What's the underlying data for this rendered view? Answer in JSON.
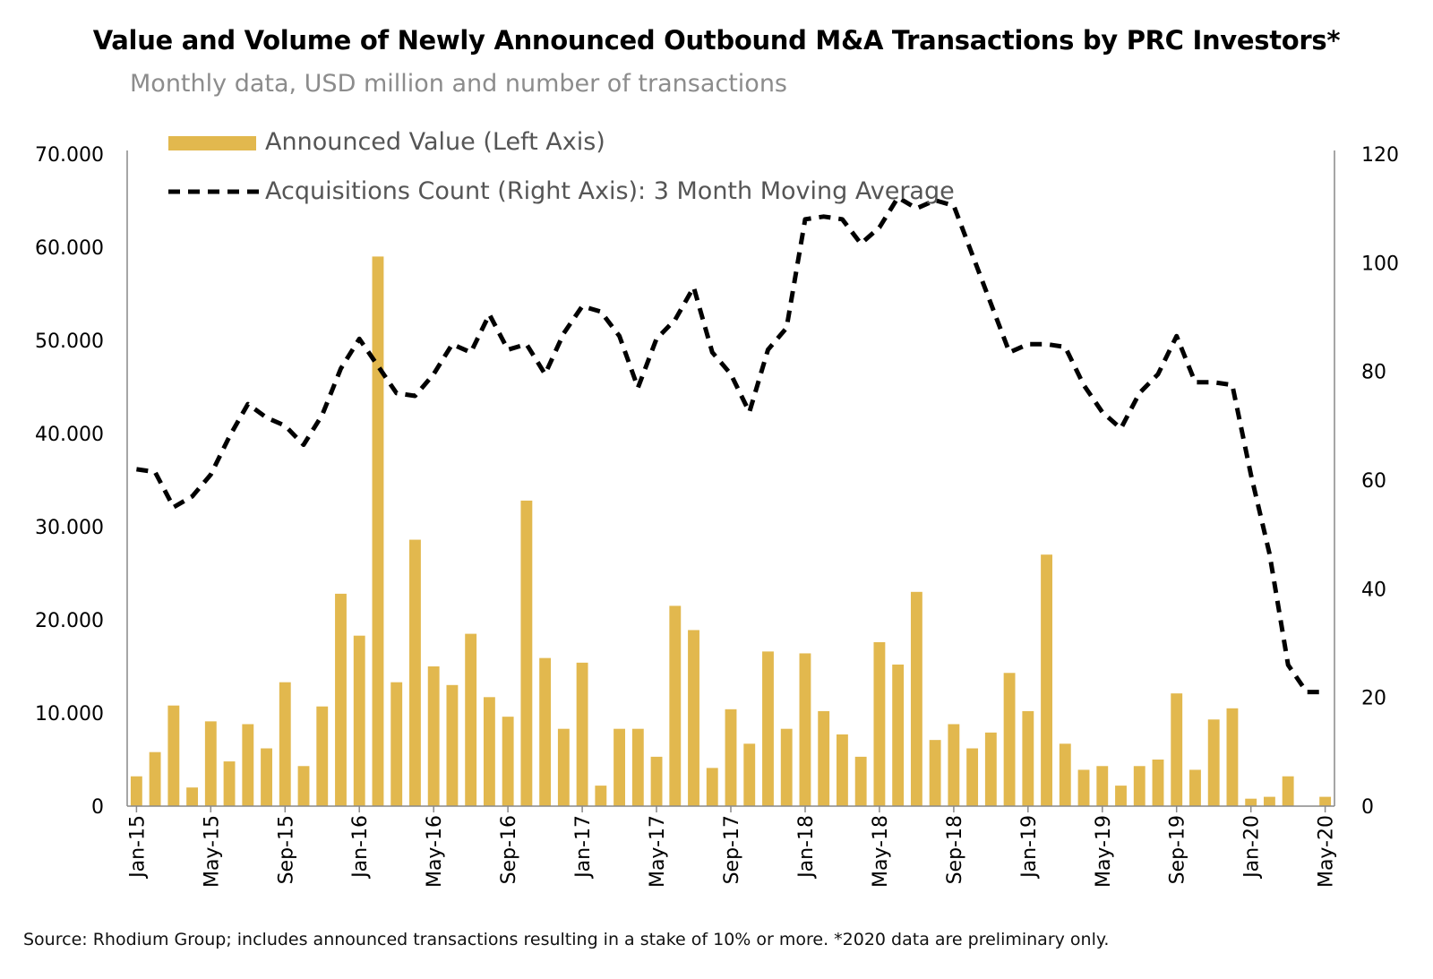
{
  "title": "Value and Volume of Newly Announced Outbound M&A Transactions by PRC Investors*",
  "subtitle": "Monthly data, USD million and number of transactions",
  "source": "Source: Rhodium Group; includes announced transactions resulting in a stake of 10% or more. *2020 data are preliminary only.",
  "colors": {
    "bar": "#e2b84e",
    "line": "#000000",
    "axis": "#888888"
  },
  "chart_data": {
    "type": "bar",
    "legend_placement": "top-left",
    "grid": false,
    "left_axis": {
      "ylim": [
        0,
        70000
      ],
      "ticks": [
        "0",
        "10.000",
        "20.000",
        "30.000",
        "40.000",
        "50.000",
        "60.000",
        "70.000"
      ]
    },
    "right_axis": {
      "ylim": [
        0,
        120
      ],
      "ticks": [
        "0",
        "20",
        "40",
        "60",
        "80",
        "100",
        "120"
      ]
    },
    "x_tick_labels": [
      "Jan-15",
      "May-15",
      "Sep-15",
      "Jan-16",
      "May-16",
      "Sep-16",
      "Jan-17",
      "May-17",
      "Sep-17",
      "Jan-18",
      "May-18",
      "Sep-18",
      "Jan-19",
      "May-19",
      "Sep-19",
      "Jan-20",
      "May-20"
    ],
    "categories": [
      "Jan-15",
      "Feb-15",
      "Mar-15",
      "Apr-15",
      "May-15",
      "Jun-15",
      "Jul-15",
      "Aug-15",
      "Sep-15",
      "Oct-15",
      "Nov-15",
      "Dec-15",
      "Jan-16",
      "Feb-16",
      "Mar-16",
      "Apr-16",
      "May-16",
      "Jun-16",
      "Jul-16",
      "Aug-16",
      "Sep-16",
      "Oct-16",
      "Nov-16",
      "Dec-16",
      "Jan-17",
      "Feb-17",
      "Mar-17",
      "Apr-17",
      "May-17",
      "Jun-17",
      "Jul-17",
      "Aug-17",
      "Sep-17",
      "Oct-17",
      "Nov-17",
      "Dec-17",
      "Jan-18",
      "Feb-18",
      "Mar-18",
      "Apr-18",
      "May-18",
      "Jun-18",
      "Jul-18",
      "Aug-18",
      "Sep-18",
      "Oct-18",
      "Nov-18",
      "Dec-18",
      "Jan-19",
      "Feb-19",
      "Mar-19",
      "Apr-19",
      "May-19",
      "Jun-19",
      "Jul-19",
      "Aug-19",
      "Sep-19",
      "Oct-19",
      "Nov-19",
      "Dec-19",
      "Jan-20",
      "Feb-20",
      "Mar-20",
      "Apr-20",
      "May-20"
    ],
    "series": [
      {
        "name": "Announced Value (Left Axis)",
        "type": "bar",
        "axis": "left",
        "values": [
          3200,
          5800,
          10800,
          2000,
          9100,
          4800,
          8800,
          6200,
          13300,
          4300,
          10700,
          22800,
          18300,
          59000,
          13300,
          28600,
          15000,
          13000,
          18500,
          11700,
          9600,
          32800,
          15900,
          8300,
          15400,
          2200,
          8300,
          8300,
          5300,
          21500,
          18900,
          4100,
          10400,
          6700,
          16600,
          8300,
          16400,
          10200,
          7700,
          5300,
          17600,
          15200,
          23000,
          7100,
          8800,
          6200,
          7900,
          14300,
          10200,
          27000,
          6700,
          3900,
          4300,
          2200,
          4300,
          5000,
          12100,
          3900,
          9300,
          10500,
          800,
          1000,
          3200,
          0,
          1000
        ]
      },
      {
        "name": "Acquisitions Count (Right Axis): 3 Month Moving Average",
        "type": "line",
        "axis": "right",
        "values": [
          62,
          61.5,
          55,
          57,
          61,
          68,
          74,
          71.5,
          70,
          66.5,
          72,
          80.5,
          86,
          81,
          76,
          75.5,
          79.5,
          85,
          83.5,
          90.5,
          84,
          85,
          79.5,
          87,
          92,
          91,
          86.5,
          77,
          86,
          89.5,
          95.5,
          83.5,
          79.5,
          72.5,
          84,
          88,
          108,
          108.5,
          108,
          103.5,
          106.5,
          112,
          110,
          111.5,
          110.5,
          101.5,
          92.5,
          83.5,
          85,
          85,
          84.5,
          77.5,
          72.5,
          69.5,
          76,
          79.5,
          86.5,
          78,
          78,
          77.5,
          61,
          46.5,
          26,
          21,
          21
        ]
      }
    ]
  }
}
